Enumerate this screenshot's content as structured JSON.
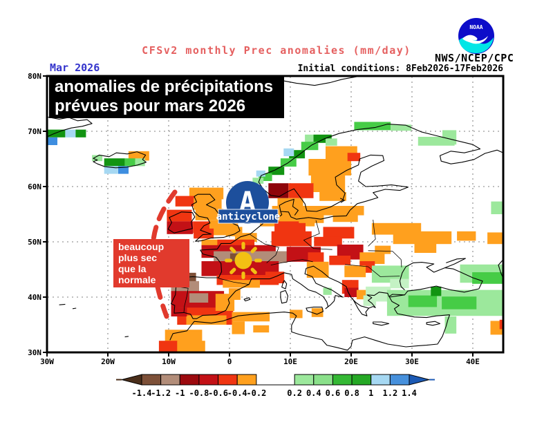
{
  "header": {
    "plot_title": "CFSv2 monthly Prec anomalies (mm/day)",
    "agency": "NWS/NCEP/CPC",
    "noaa_logo_text": "NOAA",
    "date_label": "Mar 2026",
    "initial_conditions": "Initial conditions: 8Feb2026-17Feb2026"
  },
  "annotations": {
    "title_box": {
      "line1": "anomalies de précipitations",
      "line2": "prévues pour mars 2026"
    },
    "dry_box": {
      "line1": "beaucoup",
      "line2": "plus sec",
      "line3": "que la normale"
    },
    "anticyclone": {
      "letter": "A",
      "label": "anticyclone"
    }
  },
  "colors": {
    "plot_title": "#e56060",
    "date_label": "#3333cc",
    "annotation_red": "#e13a2d",
    "anticyclone_blue": "#1d4f9c",
    "sun_yellow": "#f3c013",
    "grid_gray": "#999999"
  },
  "map": {
    "lat_labels": [
      {
        "text": "80N",
        "lat": 80
      },
      {
        "text": "70N",
        "lat": 70
      },
      {
        "text": "60N",
        "lat": 60
      },
      {
        "text": "50N",
        "lat": 50
      },
      {
        "text": "40N",
        "lat": 40
      },
      {
        "text": "30N",
        "lat": 30
      }
    ],
    "lon_labels": [
      {
        "text": "30W",
        "lon": -30
      },
      {
        "text": "20W",
        "lon": -20
      },
      {
        "text": "10W",
        "lon": -10
      },
      {
        "text": "0",
        "lon": 0
      },
      {
        "text": "10E",
        "lon": 10
      },
      {
        "text": "20E",
        "lon": 20
      },
      {
        "text": "30E",
        "lon": 30
      },
      {
        "text": "40E",
        "lon": 40
      }
    ],
    "grid_lats": [
      70,
      60,
      50,
      40
    ],
    "grid_lons": [
      -20,
      -10,
      0,
      10,
      20,
      30,
      40
    ],
    "palette": {
      "o": "#ffa01e",
      "r": "#f03511",
      "dr": "#c31116",
      "dr2": "#8e060b",
      "t1": "#b28d79",
      "t2": "#7d5038",
      "g0": "#c4f2c4",
      "g1": "#9ce89c",
      "g2": "#46cc46",
      "g3": "#129412",
      "b1": "#a6d8f2",
      "b2": "#3e8ee0"
    },
    "cells": [
      [
        -30,
        70.3,
        3,
        1.4,
        "g3"
      ],
      [
        -27,
        70.3,
        1.7,
        1.4,
        "b1"
      ],
      [
        -25.3,
        70.3,
        1.7,
        1.4,
        "g3"
      ],
      [
        -30,
        68.9,
        1.7,
        1.4,
        "b2"
      ],
      [
        -22.6,
        65.7,
        1.7,
        1.1,
        "g1"
      ],
      [
        -16.6,
        66.4,
        3.4,
        1.7,
        "o"
      ],
      [
        -20.6,
        65.1,
        3.4,
        1.4,
        "g3"
      ],
      [
        -17.2,
        65.1,
        1.7,
        1.4,
        "g2"
      ],
      [
        -15.5,
        65.1,
        1.6,
        1.4,
        "g1"
      ],
      [
        -20.6,
        63.7,
        2.3,
        1.4,
        "b1"
      ],
      [
        -18.3,
        63.7,
        1.7,
        1.4,
        "b2"
      ],
      [
        20.5,
        71.7,
        6,
        1.5,
        "g2"
      ],
      [
        26.5,
        71.2,
        3.4,
        1.1,
        "g1"
      ],
      [
        31,
        69,
        6,
        1.6,
        "g1"
      ],
      [
        35,
        70.2,
        2.3,
        2.6,
        "g1"
      ],
      [
        13.8,
        69.4,
        3,
        1.5,
        "g3"
      ],
      [
        12.4,
        69.4,
        1.4,
        1.5,
        "g1"
      ],
      [
        15.8,
        68.7,
        1.9,
        1.3,
        "g1"
      ],
      [
        11.8,
        68.1,
        2.8,
        1.5,
        "g2"
      ],
      [
        9.8,
        66.6,
        2.6,
        1.5,
        "g3"
      ],
      [
        8.4,
        65.1,
        2.6,
        1.5,
        "g2"
      ],
      [
        6.4,
        63.6,
        2.6,
        1.5,
        "g3"
      ],
      [
        4.8,
        62.4,
        2.2,
        1.4,
        "g2"
      ],
      [
        3.8,
        61.6,
        1.8,
        1.1,
        "g1"
      ],
      [
        8.9,
        66.9,
        1.7,
        1.4,
        "b1"
      ],
      [
        4.4,
        62.9,
        1.5,
        1.1,
        "b1"
      ],
      [
        15.8,
        67.3,
        5.2,
        2.3,
        "o"
      ],
      [
        13,
        65,
        7,
        3,
        "o"
      ],
      [
        13.4,
        62,
        5.6,
        3,
        "o"
      ],
      [
        14.8,
        59,
        4.4,
        1.6,
        "o"
      ],
      [
        19.4,
        66.1,
        2.1,
        1.5,
        "r"
      ],
      [
        6.4,
        60.6,
        3.3,
        2.7,
        "dr2"
      ],
      [
        9.7,
        60.6,
        4.1,
        2.7,
        "r"
      ],
      [
        7.9,
        57.9,
        4.2,
        1.7,
        "o"
      ],
      [
        7,
        56.5,
        7,
        2.1,
        "o"
      ],
      [
        5,
        54.7,
        9,
        1.9,
        "o"
      ],
      [
        -6.6,
        59.8,
        5.6,
        2.1,
        "o"
      ],
      [
        -8.9,
        58.3,
        3.1,
        1.9,
        "r"
      ],
      [
        -5.9,
        57.9,
        4.6,
        2.1,
        "o"
      ],
      [
        -10.3,
        55.8,
        4.1,
        2.1,
        "r"
      ],
      [
        -10.3,
        53.7,
        4.3,
        2.3,
        "dr"
      ],
      [
        -6,
        53.7,
        3.1,
        2.1,
        "r"
      ],
      [
        -5.6,
        56,
        4.6,
        2.1,
        "o"
      ],
      [
        -3.3,
        53.9,
        4.7,
        2.7,
        "o"
      ],
      [
        -5.9,
        52.4,
        3.3,
        1.8,
        "r"
      ],
      [
        -0.6,
        52.7,
        2.7,
        1.7,
        "o"
      ],
      [
        -4.6,
        50.4,
        4.1,
        1.3,
        "o"
      ],
      [
        0.9,
        51.6,
        3.6,
        1.6,
        "o"
      ],
      [
        -2,
        50.4,
        6.1,
        1.8,
        "r"
      ],
      [
        -4.6,
        49.4,
        12.2,
        2.3,
        "dr"
      ],
      [
        -2.6,
        48.3,
        10.2,
        1.9,
        "t1"
      ],
      [
        4.9,
        48.3,
        4.6,
        2.1,
        "t1"
      ],
      [
        0.1,
        47.9,
        2.3,
        1.5,
        "t2"
      ],
      [
        -4.6,
        46.5,
        12.7,
        2.7,
        "dr"
      ],
      [
        -2.1,
        44,
        10.2,
        1.8,
        "r"
      ],
      [
        -1.1,
        43.1,
        6.1,
        1.4,
        "o"
      ],
      [
        5.9,
        44.6,
        3.1,
        2.1,
        "r"
      ],
      [
        -8.6,
        44.4,
        3.1,
        1.6,
        "t2"
      ],
      [
        -9.6,
        42.9,
        4.6,
        1.9,
        "t1"
      ],
      [
        -9.6,
        41.1,
        8.7,
        3.1,
        "dr"
      ],
      [
        -8.6,
        38.1,
        9.2,
        3.1,
        "r"
      ],
      [
        -6.6,
        40.7,
        3.1,
        1.7,
        "t1"
      ],
      [
        -2.3,
        40.6,
        3.1,
        3.1,
        "o"
      ],
      [
        -7.1,
        36.7,
        6.6,
        1.7,
        "o"
      ],
      [
        -9.6,
        38.1,
        2.6,
        1.6,
        "dr"
      ],
      [
        -0.1,
        41.6,
        1.9,
        2.1,
        "o"
      ],
      [
        -10.6,
        34.1,
        6.1,
        2.3,
        "o"
      ],
      [
        -11.6,
        32.1,
        3.1,
        2.1,
        "r"
      ],
      [
        -8.6,
        32.1,
        4.6,
        2.1,
        "o"
      ],
      [
        0.4,
        37.3,
        6.2,
        1.7,
        "o"
      ],
      [
        0.4,
        35.6,
        2.1,
        2.3,
        "o"
      ],
      [
        3.9,
        34.9,
        2.6,
        1.3,
        "o"
      ],
      [
        7.4,
        53.7,
        5.1,
        1.9,
        "r"
      ],
      [
        6.9,
        51.9,
        6.6,
        2.7,
        "r"
      ],
      [
        9.4,
        49.1,
        5.6,
        2.7,
        "dr"
      ],
      [
        12.9,
        48.1,
        2.6,
        1.9,
        "r"
      ],
      [
        12.7,
        46.4,
        3.6,
        2.9,
        "o"
      ],
      [
        13.5,
        38,
        1.9,
        1.6,
        "o"
      ],
      [
        9.9,
        37.7,
        2.1,
        1.5,
        "o"
      ],
      [
        13,
        56.5,
        9.1,
        1.7,
        "o"
      ],
      [
        11.4,
        54.9,
        4.1,
        1.5,
        "o"
      ],
      [
        17,
        55.1,
        4.1,
        1.5,
        "o"
      ],
      [
        15.4,
        52.7,
        5.1,
        2.1,
        "r"
      ],
      [
        13.9,
        50.9,
        4.6,
        1.7,
        "r"
      ],
      [
        17.7,
        49.5,
        4.3,
        2.7,
        "dr"
      ],
      [
        21.4,
        48.1,
        4.1,
        2.1,
        "o"
      ],
      [
        16.4,
        47.5,
        3.5,
        1.7,
        "r"
      ],
      [
        21.4,
        46.5,
        2.5,
        2.1,
        "r"
      ],
      [
        18.9,
        45.7,
        3.5,
        2.1,
        "o"
      ],
      [
        18.5,
        43.1,
        2.7,
        2.5,
        "r"
      ],
      [
        18.9,
        41.7,
        2.3,
        1.7,
        "dr"
      ],
      [
        20.9,
        41.3,
        2.3,
        1.7,
        "o"
      ],
      [
        15.4,
        41.7,
        1.4,
        1.3,
        "g1"
      ],
      [
        22.4,
        41.9,
        4.1,
        2.7,
        "g0"
      ],
      [
        22,
        40.3,
        2.1,
        1.9,
        "g0"
      ],
      [
        23.4,
        53.4,
        8.1,
        2.1,
        "o"
      ],
      [
        26.9,
        51.9,
        9.6,
        2.3,
        "o"
      ],
      [
        37.4,
        51.9,
        3.1,
        1.7,
        "o"
      ],
      [
        42.4,
        51.7,
        2.6,
        2.1,
        "o"
      ],
      [
        30.4,
        49.7,
        3.6,
        1.7,
        "o"
      ],
      [
        23.9,
        49.3,
        2.6,
        1.5,
        "o"
      ],
      [
        43,
        57.3,
        2,
        2.3,
        "g1"
      ],
      [
        23.4,
        45.7,
        6.1,
        3.1,
        "g1"
      ],
      [
        26.4,
        43.3,
        3.1,
        1.7,
        "g0"
      ],
      [
        25.9,
        41.3,
        10.2,
        4.7,
        "g1"
      ],
      [
        35.9,
        41.3,
        9.1,
        4.7,
        "g1"
      ],
      [
        29.4,
        40.3,
        4.7,
        2.1,
        "g2"
      ],
      [
        34.9,
        40.1,
        5.7,
        2.3,
        "g2"
      ],
      [
        33.1,
        41.9,
        1.7,
        1.7,
        "g3"
      ],
      [
        37.9,
        45.9,
        7.1,
        3.3,
        "g1"
      ],
      [
        39.9,
        44.5,
        5.1,
        2.1,
        "g2"
      ],
      [
        35.4,
        36.5,
        1.9,
        3.1,
        "g1"
      ],
      [
        42.9,
        35.7,
        2.1,
        2.5,
        "o"
      ],
      [
        44.4,
        35.9,
        0.6,
        1.7,
        "r"
      ]
    ]
  },
  "legend": {
    "tick_labels": [
      "-1.4",
      "-1.2",
      "-1",
      "-0.8",
      "-0.6",
      "-0.4",
      "-0.2",
      "0.2",
      "0.4",
      "0.6",
      "0.8",
      "1",
      "1.2",
      "1.4"
    ],
    "segment_colors": [
      "#7d5038",
      "#b28d79",
      "#9c0a0e",
      "#c31116",
      "#f03511",
      "#ffa01e",
      "#ffffff",
      "#9ce89c",
      "#8ae08a",
      "#34b834",
      "#25a825",
      "#a6d8f2",
      "#4690dc"
    ],
    "segment_units": [
      1,
      1,
      1,
      1,
      1,
      1,
      2,
      1,
      1,
      1,
      1,
      1,
      1
    ],
    "arrow_left_color": "#4a2e1a",
    "arrow_right_color": "#1c5ab4"
  }
}
